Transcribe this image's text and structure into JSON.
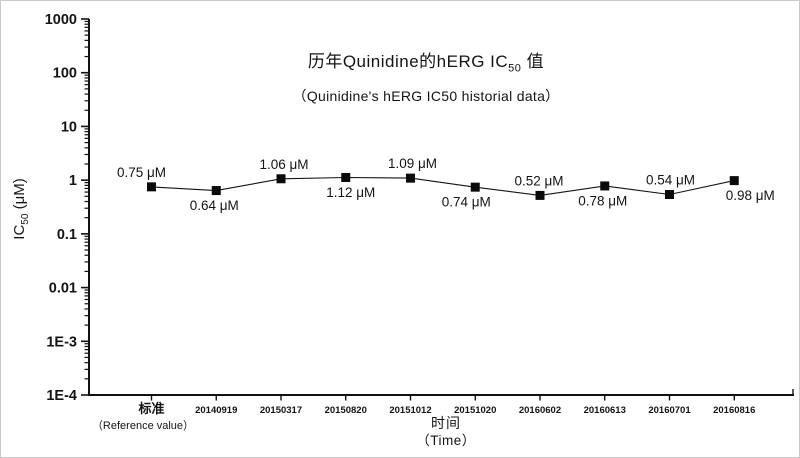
{
  "figure": {
    "background": "#ffffff",
    "title": {
      "prefix": "历年Quinidine的hERG IC",
      "sub": "50",
      "suffix": " 值"
    },
    "subtitle": "（Quinidine's hERG IC50 historial data）",
    "y_axis_title": {
      "prefix": "IC",
      "sub": "50",
      "suffix": " (μM)"
    },
    "x_axis_title": {
      "zh": "时间",
      "en": "（Time）"
    },
    "reference_note": "（Reference value）"
  },
  "chart_data": {
    "type": "line",
    "y_scale": "log",
    "grid": "off",
    "legend": "none",
    "title": "历年Quinidine的hERG IC50 值",
    "subtitle": "（Quinidine's hERG IC50 historial data）",
    "xlabel": "时间（Time）",
    "ylabel": "IC50 (μM)",
    "categories": [
      "标准",
      "20140919",
      "20150317",
      "20150820",
      "20151012",
      "20151020",
      "20160602",
      "20160613",
      "20160701",
      "20160816"
    ],
    "x_axis_note": {
      "category": "标准",
      "text": "（Reference value）"
    },
    "values": [
      0.75,
      0.64,
      1.06,
      1.12,
      1.09,
      0.74,
      0.52,
      0.78,
      0.54,
      0.98
    ],
    "point_labels": [
      "0.75 μM",
      "0.64 μM",
      "1.06 μM",
      "1.12 μM",
      "1.09 μM",
      "0.74 μM",
      "0.52 μM",
      "0.78 μM",
      "0.54 μM",
      "0.98 μM"
    ],
    "label_placement": [
      "above",
      "below",
      "above",
      "below",
      "above",
      "below",
      "above",
      "below",
      "above",
      "below"
    ],
    "label_dx": [
      -10,
      -2,
      3,
      5,
      2,
      -9,
      -1,
      -2,
      1,
      16
    ],
    "ylim": [
      0.0001,
      1000
    ],
    "y_ticks": [
      1000,
      100,
      10,
      1,
      0.1,
      0.01,
      0.001,
      0.0001
    ],
    "y_tick_labels": [
      "1000",
      "100",
      "10",
      "1",
      "0.1",
      "0.01",
      "1E-3",
      "1E-4"
    ],
    "line_color": "#141414",
    "marker": "square",
    "marker_color": "#0a0a0a",
    "marker_size": 9
  }
}
